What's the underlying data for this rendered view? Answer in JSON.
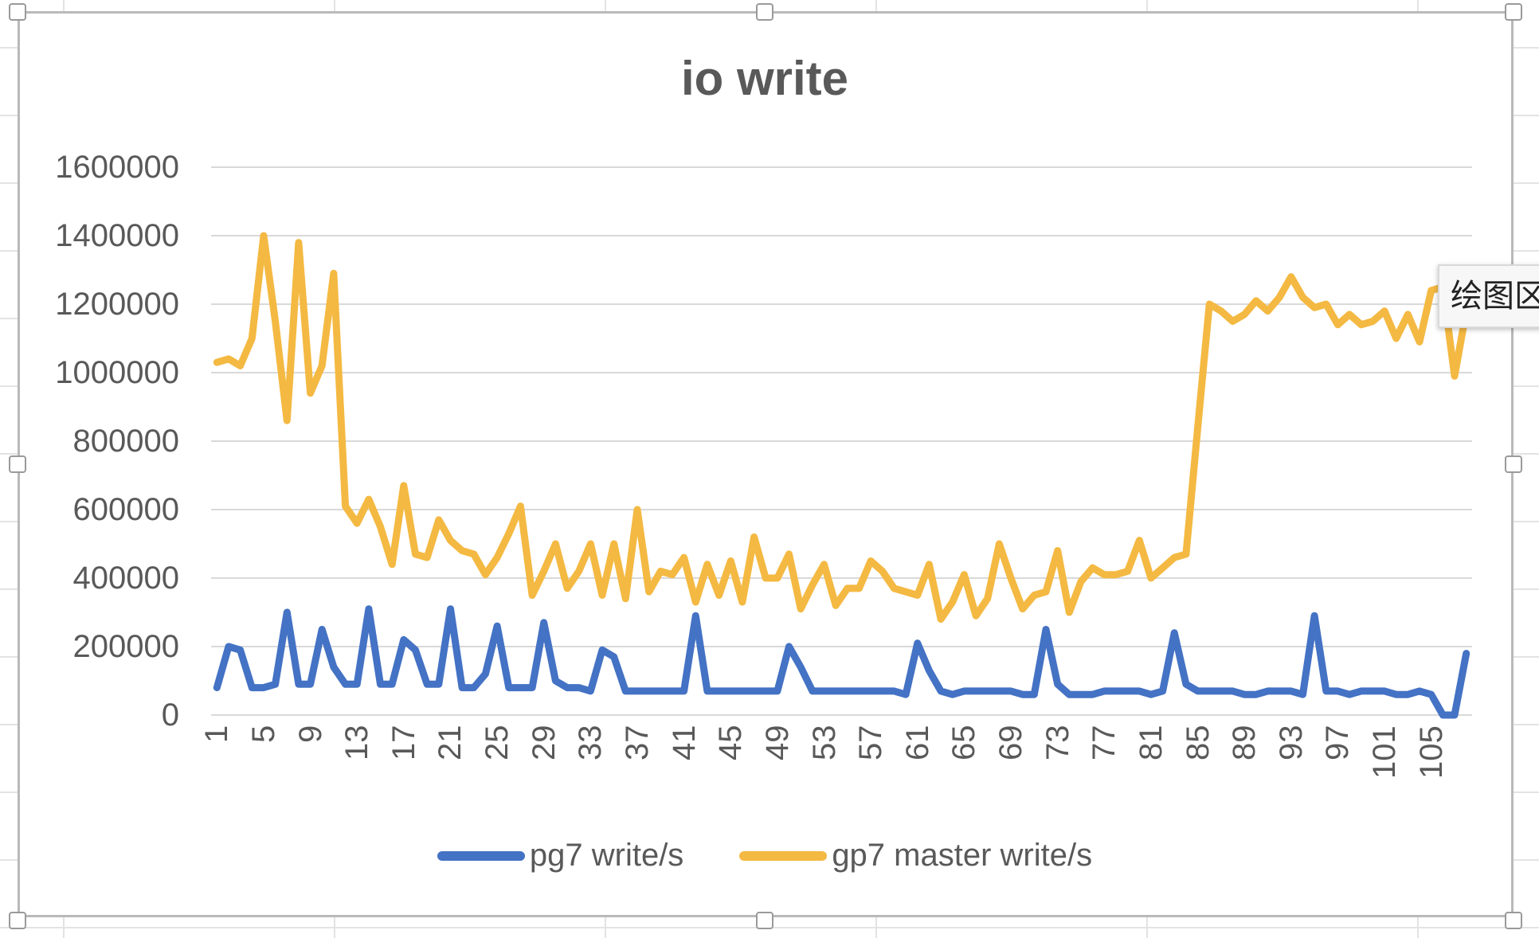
{
  "chart_data": {
    "type": "line",
    "title": "io write",
    "xlabel": "",
    "ylabel": "",
    "ylim": [
      0,
      1600000
    ],
    "yticks": [
      0,
      200000,
      400000,
      600000,
      800000,
      1000000,
      1200000,
      1400000,
      1600000
    ],
    "ytick_labels": [
      "0",
      "200000",
      "400000",
      "600000",
      "800000",
      "1000000",
      "1200000",
      "1400000",
      "1600000"
    ],
    "xtick_labels": [
      "1",
      "5",
      "9",
      "13",
      "17",
      "21",
      "25",
      "29",
      "33",
      "37",
      "41",
      "45",
      "49",
      "53",
      "57",
      "61",
      "65",
      "69",
      "73",
      "77",
      "81",
      "85",
      "89",
      "93",
      "97",
      "101",
      "105"
    ],
    "x": [
      1,
      2,
      3,
      4,
      5,
      6,
      7,
      8,
      9,
      10,
      11,
      12,
      13,
      14,
      15,
      16,
      17,
      18,
      19,
      20,
      21,
      22,
      23,
      24,
      25,
      26,
      27,
      28,
      29,
      30,
      31,
      32,
      33,
      34,
      35,
      36,
      37,
      38,
      39,
      40,
      41,
      42,
      43,
      44,
      45,
      46,
      47,
      48,
      49,
      50,
      51,
      52,
      53,
      54,
      55,
      56,
      57,
      58,
      59,
      60,
      61,
      62,
      63,
      64,
      65,
      66,
      67,
      68,
      69,
      70,
      71,
      72,
      73,
      74,
      75,
      76,
      77,
      78,
      79,
      80,
      81,
      82,
      83,
      84,
      85,
      86,
      87,
      88,
      89,
      90,
      91,
      92,
      93,
      94,
      95,
      96,
      97,
      98,
      99,
      100,
      101,
      102,
      103,
      104,
      105,
      106,
      107,
      108
    ],
    "grid": true,
    "legend_position": "bottom",
    "series": [
      {
        "name": "pg7 write/s",
        "color": "#4472c4",
        "values": [
          80000,
          200000,
          190000,
          80000,
          80000,
          90000,
          300000,
          90000,
          90000,
          250000,
          140000,
          90000,
          90000,
          310000,
          90000,
          90000,
          220000,
          190000,
          90000,
          90000,
          310000,
          80000,
          80000,
          120000,
          260000,
          80000,
          80000,
          80000,
          270000,
          100000,
          80000,
          80000,
          70000,
          190000,
          170000,
          70000,
          70000,
          70000,
          70000,
          70000,
          70000,
          290000,
          70000,
          70000,
          70000,
          70000,
          70000,
          70000,
          70000,
          200000,
          140000,
          70000,
          70000,
          70000,
          70000,
          70000,
          70000,
          70000,
          70000,
          60000,
          210000,
          130000,
          70000,
          60000,
          70000,
          70000,
          70000,
          70000,
          70000,
          60000,
          60000,
          250000,
          90000,
          60000,
          60000,
          60000,
          70000,
          70000,
          70000,
          70000,
          60000,
          70000,
          240000,
          90000,
          70000,
          70000,
          70000,
          70000,
          60000,
          60000,
          70000,
          70000,
          70000,
          60000,
          290000,
          70000,
          70000,
          60000,
          70000,
          70000,
          70000,
          60000,
          60000,
          70000,
          60000,
          0,
          0,
          180000
        ]
      },
      {
        "name": "gp7 master write/s",
        "color": "#f4b942",
        "values": [
          1030000,
          1040000,
          1020000,
          1100000,
          1400000,
          1150000,
          860000,
          1380000,
          940000,
          1020000,
          1290000,
          610000,
          560000,
          630000,
          550000,
          440000,
          670000,
          470000,
          460000,
          570000,
          510000,
          480000,
          470000,
          410000,
          460000,
          530000,
          610000,
          350000,
          420000,
          500000,
          370000,
          420000,
          500000,
          350000,
          500000,
          340000,
          600000,
          360000,
          420000,
          410000,
          460000,
          330000,
          440000,
          350000,
          450000,
          330000,
          520000,
          400000,
          400000,
          470000,
          310000,
          380000,
          440000,
          320000,
          370000,
          370000,
          450000,
          420000,
          370000,
          360000,
          350000,
          440000,
          280000,
          330000,
          410000,
          290000,
          340000,
          500000,
          400000,
          310000,
          350000,
          360000,
          480000,
          300000,
          390000,
          430000,
          410000,
          410000,
          420000,
          510000,
          400000,
          430000,
          460000,
          470000,
          840000,
          1200000,
          1180000,
          1150000,
          1170000,
          1210000,
          1180000,
          1220000,
          1280000,
          1220000,
          1190000,
          1200000,
          1140000,
          1170000,
          1140000,
          1150000,
          1180000,
          1100000,
          1170000,
          1090000,
          1240000,
          1250000,
          990000,
          1180000
        ]
      }
    ]
  },
  "tooltip": {
    "text": "绘图区"
  }
}
